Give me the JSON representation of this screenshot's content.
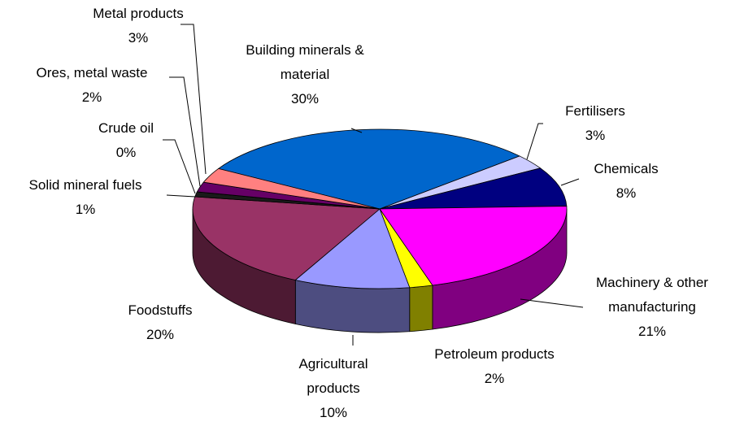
{
  "chart_data": {
    "type": "pie3d",
    "categories": [
      "Building minerals &\nmaterial",
      "Fertilisers",
      "Chemicals",
      "Machinery & other\nmanufacturing",
      "Petroleum products",
      "Agricultural\nproducts",
      "Foodstuffs",
      "Solid mineral fuels",
      "Crude oil",
      "Ores, metal waste",
      "Metal products"
    ],
    "values": [
      30,
      3,
      8,
      21,
      2,
      10,
      20,
      1,
      0,
      2,
      3
    ],
    "value_labels": [
      "30%",
      "3%",
      "8%",
      "21%",
      "2%",
      "10%",
      "20%",
      "1%",
      "0%",
      "2%",
      "3%"
    ],
    "colors": [
      "#0066cc",
      "#ccccff",
      "#000080",
      "#ff00ff",
      "#ffff00",
      "#9999ff",
      "#993366",
      "#1a1a1a",
      "#333366",
      "#660066",
      "#ff8080"
    ]
  }
}
